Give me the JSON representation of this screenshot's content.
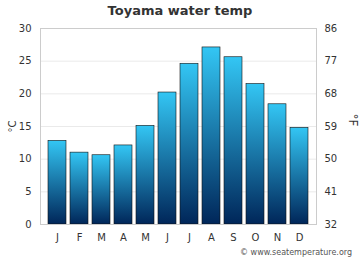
{
  "chart_data": {
    "type": "bar",
    "title": "Toyama water temp",
    "categories": [
      "J",
      "F",
      "M",
      "A",
      "M",
      "J",
      "J",
      "A",
      "S",
      "O",
      "N",
      "D"
    ],
    "values": [
      12.8,
      11.0,
      10.6,
      12.1,
      15.1,
      20.2,
      24.6,
      27.1,
      25.6,
      21.5,
      18.4,
      14.8
    ],
    "color": "#33c6f4",
    "y_label": "°C",
    "ylim": [
      0,
      30
    ],
    "yticks": [
      0,
      5,
      10,
      15,
      20,
      25,
      30
    ],
    "y2_label": "°F",
    "y2lim": [
      32,
      86
    ],
    "y2ticks": [
      32,
      41,
      50,
      59,
      68,
      77,
      86
    ],
    "grid": true,
    "caption": "© www.seatemperature.org"
  }
}
